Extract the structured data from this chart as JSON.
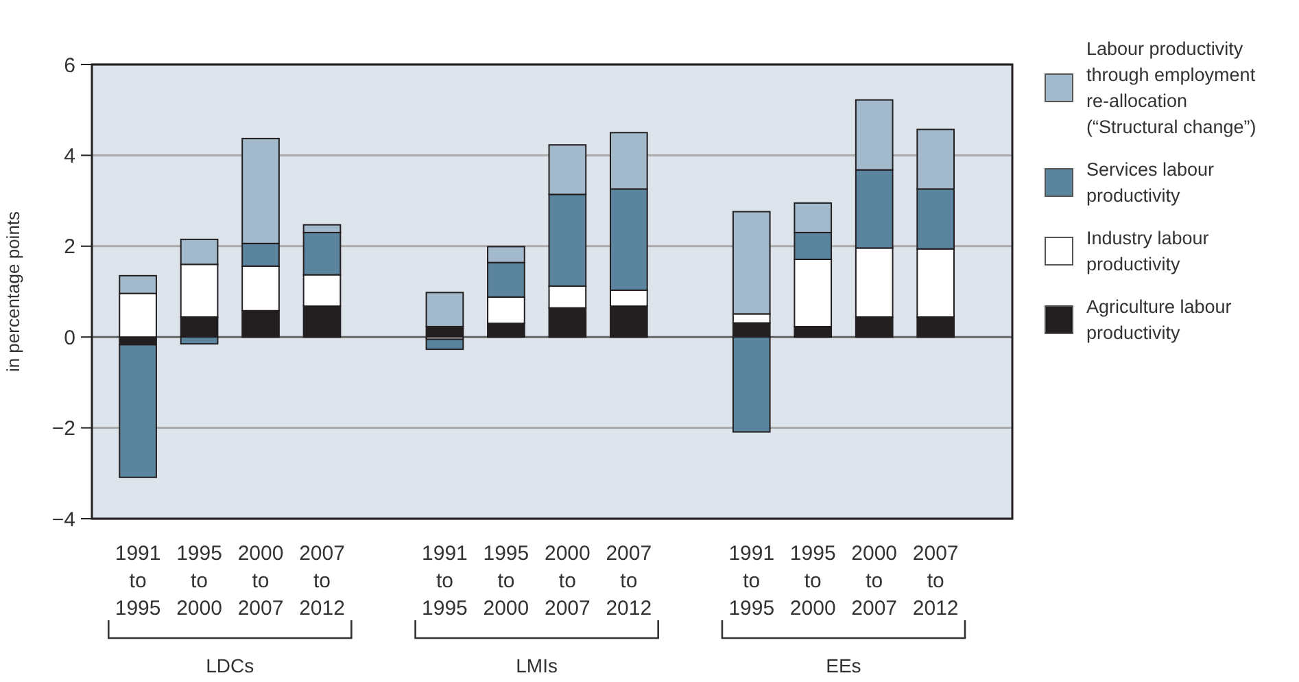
{
  "chart_data": {
    "type": "bar",
    "stacked": true,
    "ylabel": "in percentage points",
    "categories": [
      "1991 to 1995",
      "1995 to 2000",
      "2000 to 2007",
      "2007 to 2012",
      "1991 to 1995",
      "1995 to 2000",
      "2000 to 2007",
      "2007 to 2012",
      "1991 to 1995",
      "1995 to 2000",
      "2000 to 2007",
      "2007 to 2012"
    ],
    "series": [
      {
        "name": "Agriculture labour productivity",
        "color": "#231f20",
        "values": [
          -0.17,
          0.44,
          0.58,
          0.68,
          0.23,
          0.3,
          0.64,
          0.68,
          0.31,
          0.23,
          0.44,
          0.44
        ]
      },
      {
        "name": "Industry labour productivity",
        "color": "#ffffff",
        "values": [
          0.96,
          1.16,
          0.98,
          0.69,
          -0.05,
          0.58,
          0.48,
          0.35,
          0.2,
          1.48,
          1.52,
          1.5
        ]
      },
      {
        "name": "Services labour productivity",
        "color": "#5b849f",
        "values": [
          -2.92,
          -0.15,
          0.5,
          0.93,
          -0.22,
          0.76,
          2.02,
          2.23,
          -2.09,
          0.59,
          1.72,
          1.32
        ]
      },
      {
        "name": "Labour productivity through employment re-allocation (“Structural change”)",
        "color": "#a3b9cc",
        "values": [
          0.39,
          0.55,
          2.31,
          0.17,
          0.75,
          0.35,
          1.09,
          1.24,
          2.25,
          0.65,
          1.54,
          1.31
        ]
      }
    ],
    "ylim": [
      -4,
      6
    ],
    "yticks": [
      {
        "value": -4,
        "label": "−4"
      },
      {
        "value": -2,
        "label": "−2"
      },
      0,
      2,
      4,
      6
    ],
    "grid": "y",
    "legend": "right",
    "annotations": [
      "LDCs",
      "LMIs",
      "EEs"
    ]
  }
}
